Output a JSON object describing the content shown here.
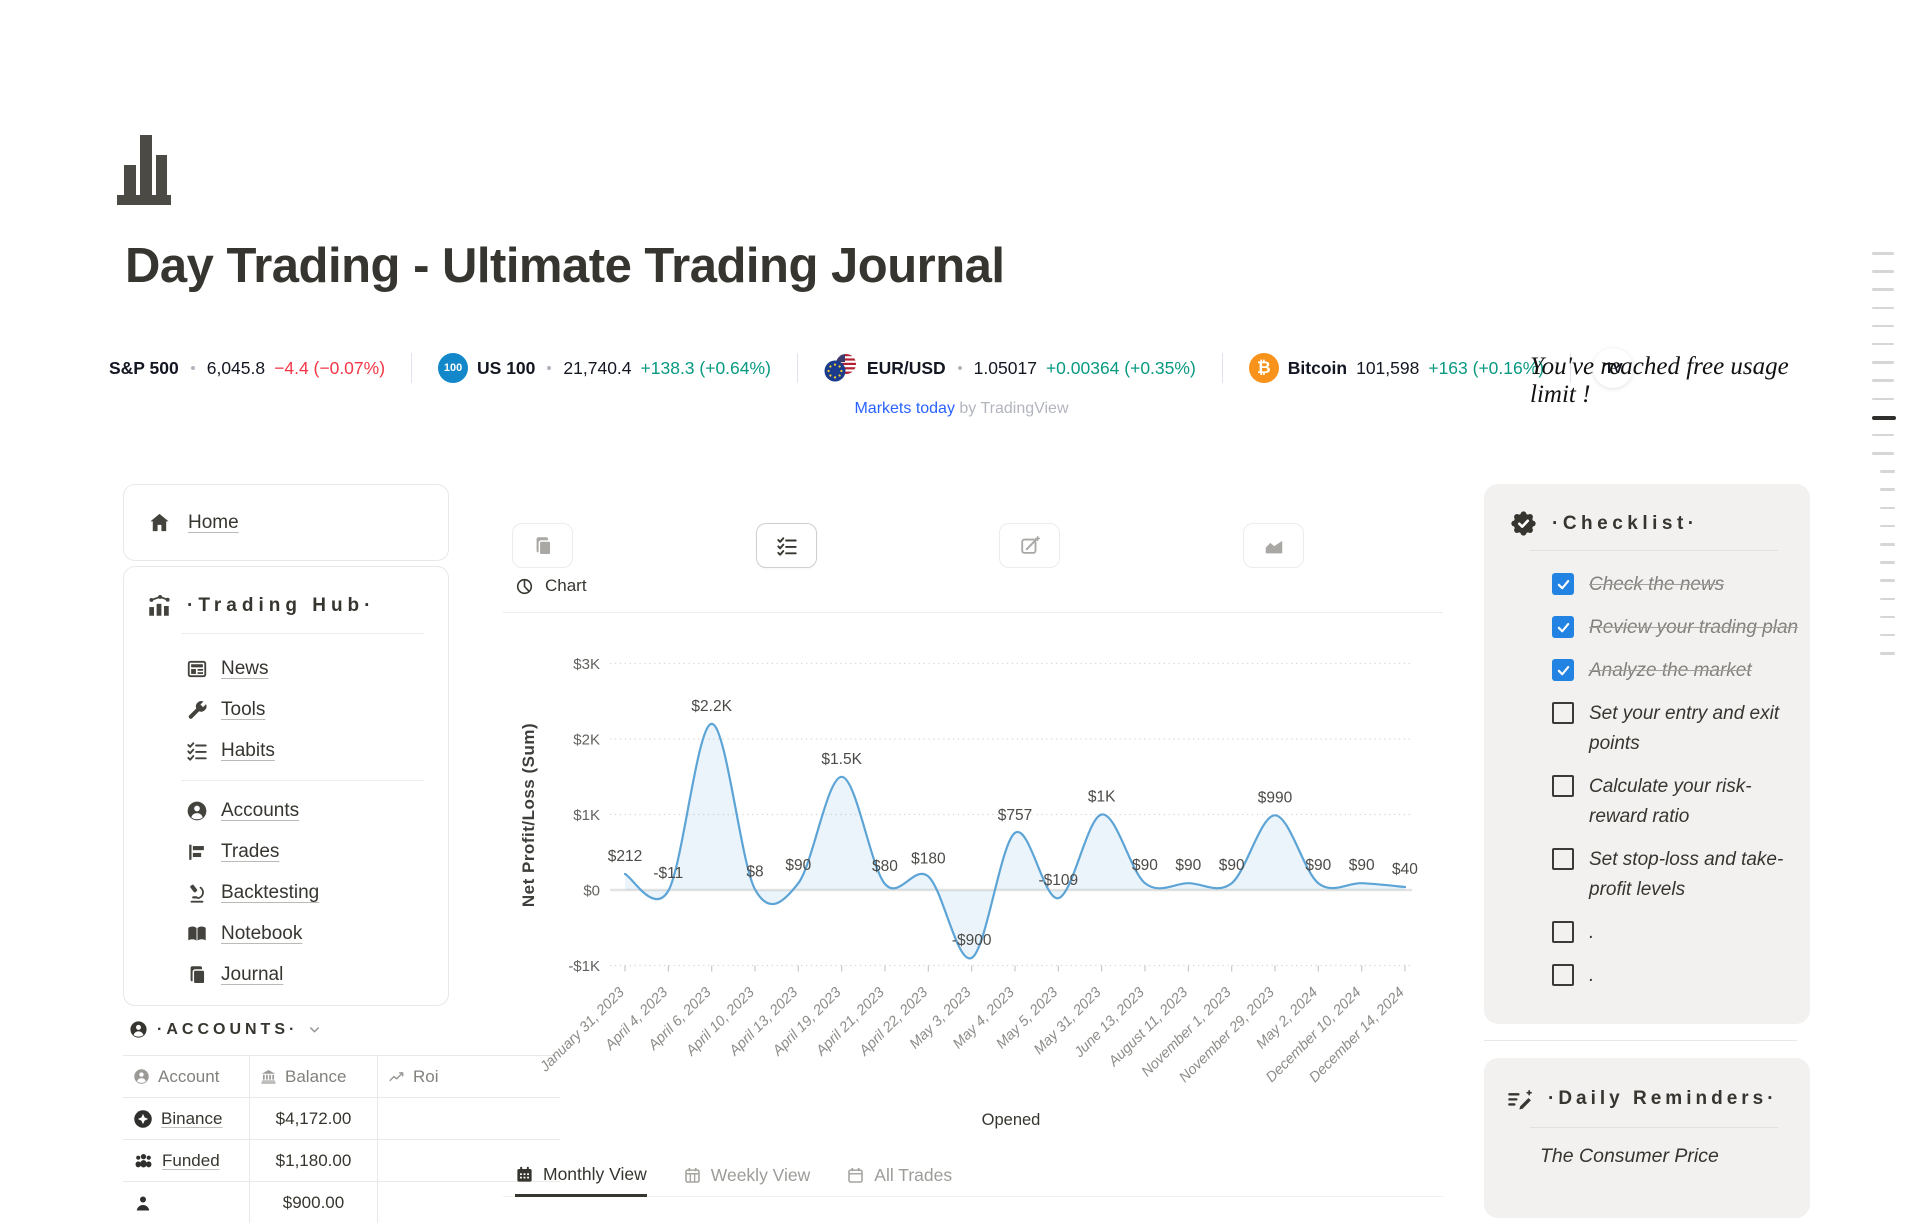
{
  "page": {
    "title": "Day Trading - Ultimate Trading Journal"
  },
  "ticker": {
    "items": [
      {
        "symbol": "S&P 500",
        "value": "6,045.8",
        "change": "−4.4 (−0.07%)",
        "direction": "down"
      },
      {
        "symbol": "US 100",
        "value": "21,740.4",
        "change": "+138.3 (+0.64%)",
        "direction": "up",
        "icon_label": "100",
        "icon_color": "#1287c9"
      },
      {
        "symbol": "EUR/USD",
        "value": "1.05017",
        "change": "+0.00364 (+0.35%)",
        "direction": "up"
      },
      {
        "symbol": "Bitcoin",
        "value": "101,598",
        "change": "+163 (+0.16%)",
        "direction": "up",
        "icon_label": "₿",
        "icon_color": "#f7931a"
      }
    ],
    "colors": {
      "up": "#089981",
      "down": "#f23645",
      "link": "#2962ff"
    },
    "attribution_link": "Markets today",
    "attribution_by": "by TradingView",
    "tv_badge": "TV",
    "usage_limit_text": "You've reached free usage limit !"
  },
  "sidebar_left": {
    "home": {
      "label": "Home"
    },
    "trading_hub": {
      "title": "·Trading Hub·",
      "items": [
        {
          "label": "News",
          "icon": "news-icon"
        },
        {
          "label": "Tools",
          "icon": "wrench-icon"
        },
        {
          "label": "Habits",
          "icon": "checklist-icon"
        },
        {
          "label": "Accounts",
          "icon": "person-circle-icon"
        },
        {
          "label": "Trades",
          "icon": "bars-icon"
        },
        {
          "label": "Backtesting",
          "icon": "microscope-icon"
        },
        {
          "label": "Notebook",
          "icon": "open-book-icon"
        },
        {
          "label": "Journal",
          "icon": "journal-icon"
        }
      ]
    },
    "accounts_section": {
      "title": "·ACCOUNTS·"
    },
    "accounts_table": {
      "columns": [
        {
          "label": "Account",
          "icon": "person-circle-icon"
        },
        {
          "label": "Balance",
          "icon": "bank-icon"
        },
        {
          "label": "Roi",
          "icon": "trend-icon"
        }
      ],
      "rows": [
        {
          "account": "Binance",
          "balance": "$4,172.00",
          "roi": "",
          "icon": "binance-icon"
        },
        {
          "account": "Funded",
          "balance": "$1,180.00",
          "roi": "",
          "icon": "people-icon"
        },
        {
          "account": "",
          "balance": "$900.00",
          "roi": "",
          "icon": "member-icon"
        }
      ]
    }
  },
  "toolbar": {
    "buttons": [
      "journal-icon",
      "checklist-icon",
      "compose-icon",
      "area-chart-icon"
    ],
    "active_index": 1
  },
  "main": {
    "chart_block_title": "Chart",
    "tabs": [
      {
        "label": "Monthly View",
        "icon": "calendar-month-icon",
        "active": true
      },
      {
        "label": "Weekly View",
        "icon": "calendar-week-icon",
        "active": false
      },
      {
        "label": "All Trades",
        "icon": "calendar-blank-icon",
        "active": false
      }
    ]
  },
  "chart_data": {
    "type": "area",
    "title": "Chart",
    "xlabel": "Opened",
    "ylabel": "Net Profit/Loss (Sum)",
    "ylim": [
      -1000,
      3000
    ],
    "grid": "dotted",
    "line_color": "#5da4d6",
    "area_opacity": 0.12,
    "yticks": [
      {
        "v": 3000,
        "label": "$3K"
      },
      {
        "v": 2000,
        "label": "$2K"
      },
      {
        "v": 1000,
        "label": "$1K"
      },
      {
        "v": 0,
        "label": "$0"
      },
      {
        "v": -1000,
        "label": "-$1K"
      }
    ],
    "x": [
      "January 31, 2023",
      "April 4, 2023",
      "April 6, 2023",
      "April 10, 2023",
      "April 13, 2023",
      "April 19, 2023",
      "April 21, 2023",
      "April 22, 2023",
      "May 3, 2023",
      "May 4, 2023",
      "May 5, 2023",
      "May 31, 2023",
      "June 13, 2023",
      "August 11, 2023",
      "November 1, 2023",
      "November 29, 2023",
      "May 2, 2024",
      "December 10, 2024",
      "December 14, 2024"
    ],
    "values": [
      212,
      -11,
      2200,
      8,
      90,
      1500,
      80,
      180,
      -900,
      757,
      -109,
      1000,
      90,
      90,
      90,
      990,
      90,
      90,
      40
    ],
    "labels": [
      "$212",
      "-$11",
      "$2.2K",
      "$8",
      "$90",
      "$1.5K",
      "$80",
      "$180",
      "-$900",
      "$757",
      "-$109",
      "$1K",
      "$90",
      "$90",
      "$90",
      "$990",
      "$90",
      "$90",
      "$40"
    ]
  },
  "sidebar_right": {
    "checklist": {
      "title": "·Checklist·",
      "items": [
        {
          "text": "Check the news",
          "checked": true
        },
        {
          "text": "Review your trading plan",
          "checked": true
        },
        {
          "text": "Analyze the market",
          "checked": true
        },
        {
          "text": "Set your entry and exit points",
          "checked": false
        },
        {
          "text": "Calculate your risk-reward ratio",
          "checked": false
        },
        {
          "text": "Set stop-loss and take-profit levels",
          "checked": false
        },
        {
          "text": ".",
          "checked": false
        },
        {
          "text": ".",
          "checked": false
        }
      ]
    },
    "daily_reminders": {
      "title": "·Daily Reminders·",
      "text": "The Consumer Price"
    }
  }
}
